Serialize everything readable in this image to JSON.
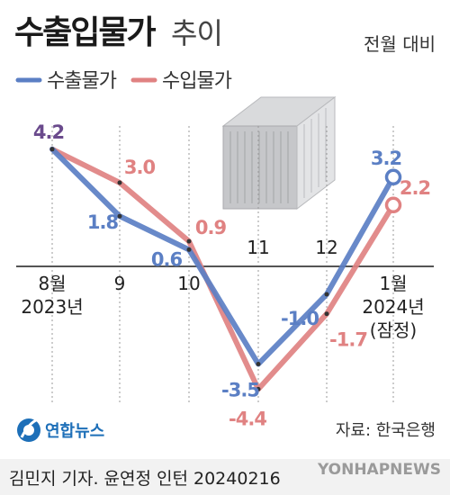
{
  "header": {
    "title_main": "수출입물가",
    "title_sub": "추이",
    "mode": "전월 대비"
  },
  "legend": [
    {
      "label": "수출물가",
      "color": "#5b7fc4"
    },
    {
      "label": "수입물가",
      "color": "#e08282"
    }
  ],
  "chart_data": {
    "type": "line",
    "categories": [
      "8월\n2023년",
      "9",
      "10",
      "11",
      "12",
      "1월\n2024년\n(잠정)"
    ],
    "series": [
      {
        "name": "수출물가",
        "values": [
          4.2,
          1.8,
          0.6,
          -3.5,
          -1.0,
          3.2
        ],
        "labels": [
          "4.2",
          "1.8",
          "0.6",
          "-3.5",
          "-1.0",
          "3.2"
        ],
        "color": "#5b7fc4"
      },
      {
        "name": "수입물가",
        "values": [
          4.2,
          3.0,
          0.9,
          -4.4,
          -1.7,
          2.2
        ],
        "labels": [
          "",
          "3.0",
          "0.9",
          "-4.4",
          "-1.7",
          "2.2"
        ],
        "color": "#e08282"
      }
    ],
    "shared_label": {
      "text": "4.2",
      "color": "#6a4a8c"
    },
    "baseline": 0,
    "ylim": [
      -5,
      5
    ],
    "last_point_marker": "open-circle"
  },
  "source": "자료: 한국은행",
  "footer": {
    "logo": "연합뉴스",
    "byline": "김민지 기자. 윤연정 인턴  20240216",
    "watermark": "YONHAPNEWS"
  },
  "colors": {
    "export": "#5b7fc4",
    "import": "#e08282",
    "overlap": "#6a4a8c",
    "axis": "#555555"
  },
  "icons": {
    "illustration": "shipping-container-icon",
    "logo": "yonhap-logo-icon"
  }
}
